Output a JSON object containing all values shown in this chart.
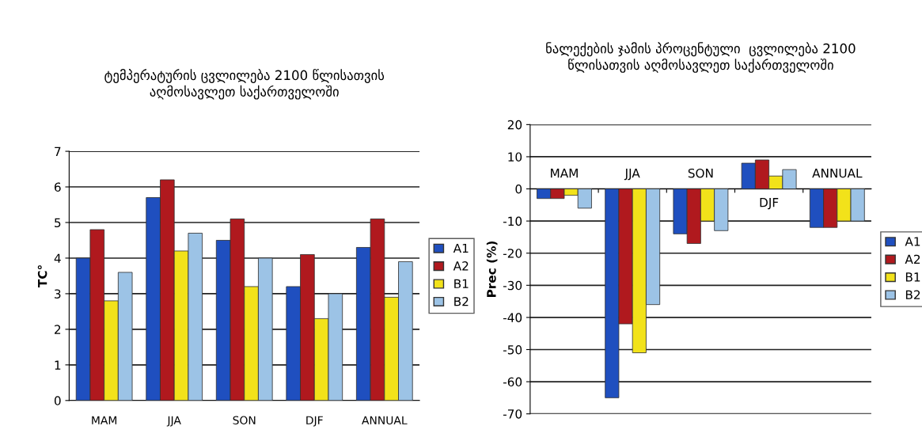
{
  "chart_data": [
    {
      "type": "bar",
      "title": "ტემპერატურის ცვლილება 2100 წლისათვის\nაღმოსავლეთ საქართველოში",
      "ylabel": "TC°",
      "categories": [
        "MAM",
        "JJA",
        "SON",
        "DJF",
        "ANNUAL"
      ],
      "series": [
        {
          "name": "A1",
          "color": "#1f4fbf",
          "values": [
            4.0,
            5.7,
            4.5,
            3.2,
            4.3
          ]
        },
        {
          "name": "A2",
          "color": "#b0191e",
          "values": [
            4.8,
            6.2,
            5.1,
            4.1,
            5.1
          ]
        },
        {
          "name": "B1",
          "color": "#f2e21a",
          "values": [
            2.8,
            4.2,
            3.2,
            2.3,
            2.9
          ]
        },
        {
          "name": "B2",
          "color": "#9cc3e6",
          "values": [
            3.6,
            4.7,
            4.0,
            3.0,
            3.9
          ]
        }
      ],
      "ylim": [
        0,
        7
      ],
      "yticks": [
        0,
        1,
        2,
        3,
        4,
        5,
        6,
        7
      ],
      "grid": "y",
      "legend": "right"
    },
    {
      "type": "bar",
      "title": "ნალექების ჯამის პროცენტული  ცვლილება 2100\nწლისათვის აღმოსავლეთ საქართველოში",
      "ylabel": "Prec (%)",
      "categories": [
        "MAM",
        "JJA",
        "SON",
        "DJF",
        "ANNUAL"
      ],
      "series": [
        {
          "name": "A1",
          "color": "#1f4fbf",
          "values": [
            -3,
            -65,
            -14,
            8,
            -12
          ]
        },
        {
          "name": "A2",
          "color": "#b0191e",
          "values": [
            -3,
            -42,
            -17,
            9,
            -12
          ]
        },
        {
          "name": "B1",
          "color": "#f2e21a",
          "values": [
            -2,
            -51,
            -10,
            4,
            -10
          ]
        },
        {
          "name": "B2",
          "color": "#9cc3e6",
          "values": [
            -6,
            -36,
            -13,
            6,
            -10
          ]
        }
      ],
      "ylim": [
        -70,
        20
      ],
      "yticks": [
        -70,
        -60,
        -50,
        -40,
        -30,
        -20,
        -10,
        0,
        10,
        20
      ],
      "grid": "y",
      "legend": "right"
    }
  ]
}
